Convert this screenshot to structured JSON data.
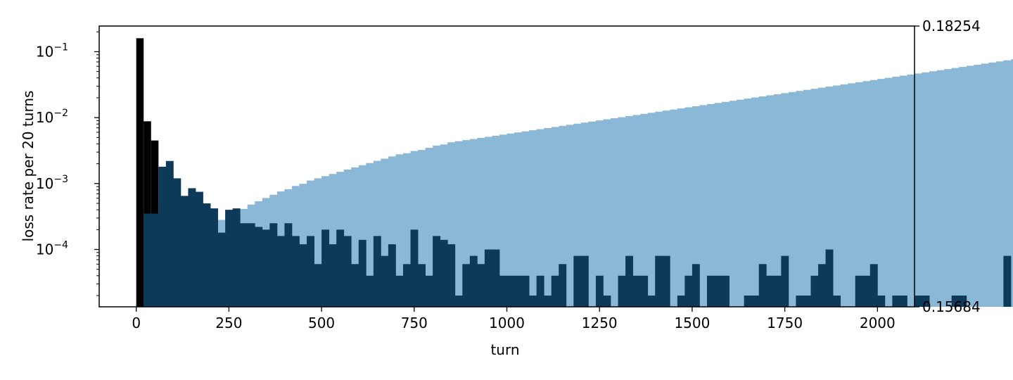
{
  "chart_data": {
    "type": "bar",
    "xlabel": "turn",
    "ylabel": "loss rate per 20 turns",
    "xlim": [
      -100,
      2100
    ],
    "ylim": [
      1.35e-05,
      0.245
    ],
    "y_scale": "log",
    "x_ticks": [
      "0",
      "250",
      "500",
      "750",
      "1000",
      "1250",
      "1500",
      "1750",
      "2000"
    ],
    "y_ticks": [
      {
        "base": "10",
        "exp": "−1",
        "value": 0.1
      },
      {
        "base": "10",
        "exp": "−2",
        "value": 0.01
      },
      {
        "base": "10",
        "exp": "−3",
        "value": 0.001
      },
      {
        "base": "10",
        "exp": "−4",
        "value": 0.0001
      }
    ],
    "y2_ticks": [
      "0.18254",
      "0.15684"
    ],
    "y2lim": [
      0.15684,
      0.18254
    ],
    "bin_width": 20,
    "bin_start": 0,
    "colors": {
      "cumulative": "#8cb8d8",
      "rate": "#0e3a5a",
      "first_bins": "#000000"
    },
    "first_bins_rate": [
      0.16,
      0.0088,
      0.0045
    ],
    "rate": [
      1e-05,
      0.00035,
      0.00035,
      0.0018,
      0.0022,
      0.0012,
      0.00065,
      0.00085,
      0.00075,
      0.0005,
      0.00042,
      0.00018,
      0.0004,
      0.00042,
      0.00025,
      0.00025,
      0.00022,
      0.0002,
      0.00025,
      0.00016,
      0.00025,
      0.00016,
      0.00012,
      0.00016,
      6e-05,
      0.0002,
      0.00012,
      0.0002,
      0.00016,
      6e-05,
      0.00014,
      4e-05,
      0.00016,
      8e-05,
      0.00012,
      4e-05,
      6e-05,
      0.0002,
      6e-05,
      4e-05,
      0.00016,
      0.00014,
      0.00012,
      2e-05,
      6e-05,
      8e-05,
      6e-05,
      0.0001,
      0.0001,
      4e-05,
      4e-05,
      4e-05,
      4e-05,
      2e-05,
      4e-05,
      2e-05,
      4e-05,
      6e-05,
      1e-05,
      8e-05,
      8e-05,
      1e-05,
      4e-05,
      2e-05,
      1e-05,
      4e-05,
      8e-05,
      4e-05,
      4e-05,
      2e-05,
      8e-05,
      8e-05,
      1e-05,
      2e-05,
      4e-05,
      6e-05,
      1e-05,
      4e-05,
      4e-05,
      4e-05,
      1e-05,
      1e-05,
      2e-05,
      2e-05,
      6e-05,
      4e-05,
      4e-05,
      8e-05,
      1e-05,
      2e-05,
      2e-05,
      4e-05,
      6e-05,
      0.0001,
      2e-05,
      1e-05,
      1e-05,
      4e-05,
      4e-05,
      6e-05,
      2e-05,
      1e-05,
      2e-05,
      2e-05,
      1e-05,
      2e-05,
      2e-05,
      1e-05,
      1e-05,
      1e-05,
      2e-05,
      2e-05,
      1e-05,
      1e-05,
      1e-05,
      1e-05,
      1e-05,
      8e-05,
      1e-05,
      1e-05
    ],
    "cumulative": [
      0.1568,
      0.1569,
      0.1575,
      0.16,
      0.1606,
      0.1614,
      0.1619,
      0.1626,
      0.1632,
      0.1638,
      0.1643,
      0.1648,
      0.1651,
      0.1654,
      0.1658,
      0.1662,
      0.1665,
      0.1668,
      0.1671,
      0.1674,
      0.1676,
      0.1679,
      0.1681,
      0.1684,
      0.1686,
      0.1688,
      0.169,
      0.1692,
      0.1694,
      0.1696,
      0.1698,
      0.17,
      0.1702,
      0.1704,
      0.1706,
      0.1708,
      0.1709,
      0.1711,
      0.1712,
      0.1714,
      0.1716,
      0.1717,
      0.1719,
      0.172,
      0.1721,
      0.1722,
      0.1723,
      0.1724,
      0.1725,
      0.1726,
      0.1727,
      0.1728,
      0.1729,
      0.173,
      0.1731,
      0.1732,
      0.1733,
      0.1734,
      0.1735,
      0.1736,
      0.1737,
      0.1738,
      0.1739,
      0.174,
      0.1741,
      0.1742,
      0.1743,
      0.1744,
      0.1745,
      0.1746,
      0.1747,
      0.1748,
      0.1749,
      0.175,
      0.1751,
      0.1752,
      0.1753,
      0.1754,
      0.1755,
      0.1756,
      0.1757,
      0.1758,
      0.1759,
      0.176,
      0.1761,
      0.1762,
      0.1763,
      0.1764,
      0.1765,
      0.1766,
      0.1767,
      0.1768,
      0.1769,
      0.177,
      0.1771,
      0.1772,
      0.1773,
      0.1774,
      0.1775,
      0.1776,
      0.1777,
      0.1778,
      0.1779,
      0.178,
      0.1781,
      0.1782,
      0.1783,
      0.1784,
      0.1785,
      0.1786,
      0.1787,
      0.1788,
      0.1789,
      0.179,
      0.1791,
      0.1792,
      0.1793,
      0.1794,
      0.1795,
      0.1796
    ]
  }
}
